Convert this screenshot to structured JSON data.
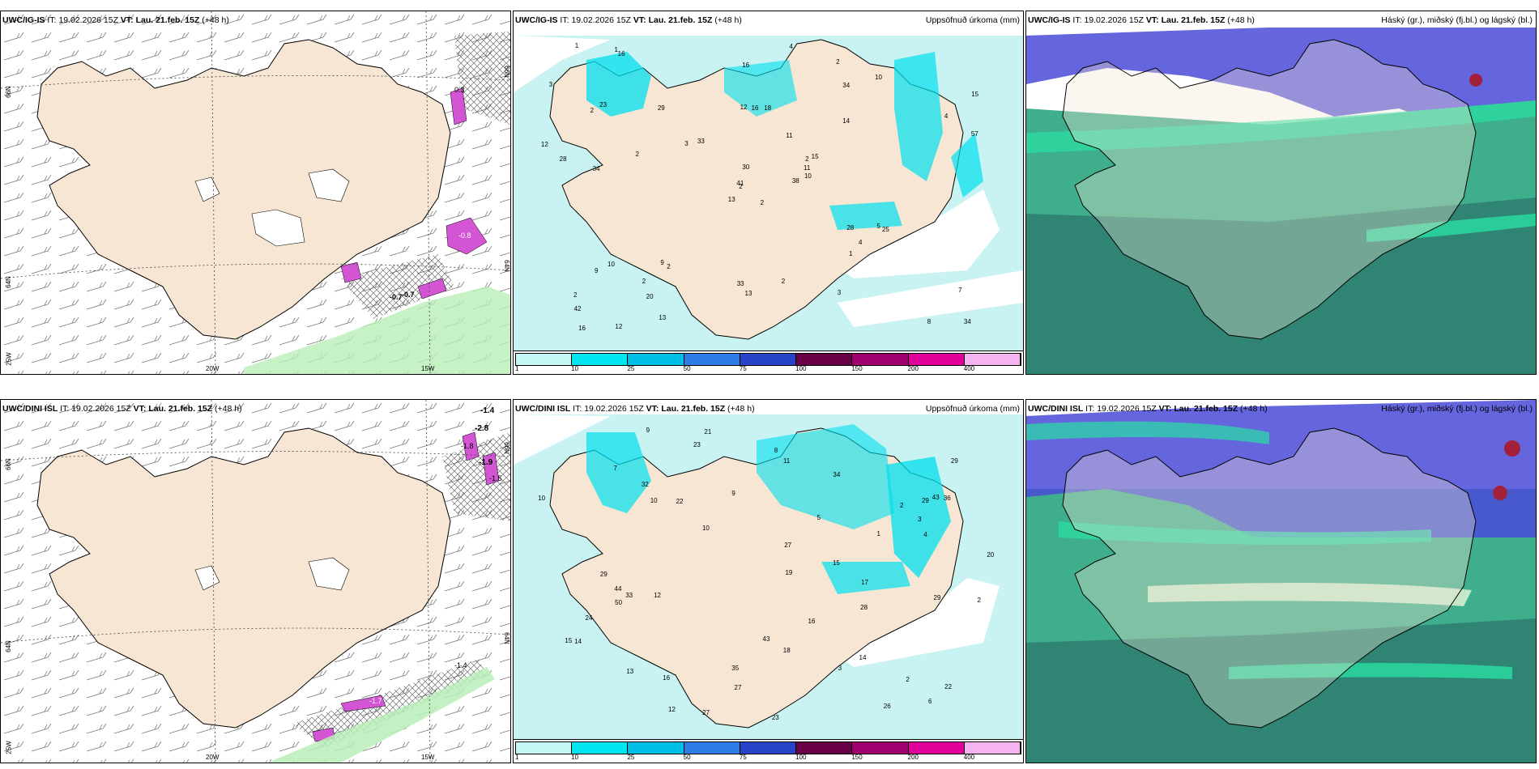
{
  "panels": [
    {
      "row": "top",
      "model": "UWC/IG-IS",
      "it_label": "IT:",
      "it": "19.02.2026 15Z",
      "vt_label": "VT:",
      "vt": "Lau. 21.feb. 15Z",
      "lead": "(+48 h)",
      "right_title": ""
    },
    {
      "row": "top",
      "model": "UWC/IG-IS",
      "it_label": "IT:",
      "it": "19.02.2026 15Z",
      "vt_label": "VT:",
      "vt": "Lau. 21.feb. 15Z",
      "lead": "(+48 h)",
      "right_title": "Uppsöfnuð úrkoma (mm)"
    },
    {
      "row": "top",
      "model": "UWC/IG-IS",
      "it_label": "IT:",
      "it": "19.02.2026 15Z",
      "vt_label": "VT:",
      "vt": "Lau. 21.feb. 15Z",
      "lead": "(+48 h)",
      "right_title": "Háský (gr.), miðský (fj.bl.) og lágský (bl.)"
    },
    {
      "row": "bottom",
      "model": "UWC/DINI ISL",
      "it_label": "IT:",
      "it": "19.02.2026 15Z",
      "vt_label": "VT:",
      "vt": "Lau. 21.feb. 15Z",
      "lead": "(+48 h)",
      "right_title": ""
    },
    {
      "row": "bottom",
      "model": "UWC/DINI ISL",
      "it_label": "IT:",
      "it": "19.02.2026 15Z",
      "vt_label": "VT:",
      "vt": "Lau. 21.feb. 15Z",
      "lead": "(+48 h)",
      "right_title": "Uppsöfnuð úrkoma (mm)"
    },
    {
      "row": "bottom",
      "model": "UWC/DINI ISL",
      "it_label": "IT:",
      "it": "19.02.2026 15Z",
      "vt_label": "VT:",
      "vt": "Lau. 21.feb. 15Z",
      "lead": "(+48 h)",
      "right_title": "Háský (gr.), miðský (fj.bl.) og lágský (bl.)"
    }
  ],
  "precip_legend": {
    "ticks": [
      "1",
      "10",
      "25",
      "50",
      "75",
      "100",
      "150",
      "200",
      "400"
    ],
    "colors": [
      "#c6f7f7",
      "#00e5ef",
      "#00bfe6",
      "#2e7de6",
      "#2845c8",
      "#6a0045",
      "#a0006e",
      "#e0009a",
      "#f5b3ef"
    ]
  },
  "map_labels": {
    "lat_66": "66N",
    "lat_64": "64N",
    "lon_25": "25W",
    "lon_20": "20W",
    "lon_15": "15W",
    "lat_66_right": "66N",
    "lat_64_right": "64N"
  },
  "pressure_values_top": [
    "0.3",
    "-0.8",
    "-0.7",
    "-0.7"
  ],
  "pressure_values_bottom": [
    "-1.4",
    "-2.8",
    "-1.8",
    "-1.9",
    "-1.5",
    "-1.7",
    "-1.4"
  ],
  "precip_numbers_top": [
    "2",
    "2",
    "2",
    "2",
    "2",
    "2",
    "2",
    "18",
    "34",
    "38",
    "16",
    "34",
    "34",
    "15",
    "13",
    "14",
    "12",
    "12",
    "11",
    "10",
    "33",
    "42",
    "20",
    "16",
    "15",
    "25",
    "23",
    "16",
    "28",
    "28",
    "57",
    "41",
    "33",
    "30",
    "29",
    "10",
    "9",
    "8",
    "7",
    "5",
    "4",
    "3",
    "2",
    "1",
    "13",
    "12",
    "11",
    "16",
    "13",
    "10",
    "9",
    "4",
    "3",
    "4",
    "3",
    "2",
    "1",
    "1",
    "2"
  ],
  "precip_numbers_bottom": [
    "2",
    "3",
    "2",
    "9",
    "32",
    "12",
    "27",
    "22",
    "20",
    "15",
    "10",
    "9",
    "14",
    "29",
    "21",
    "44",
    "29",
    "14",
    "10",
    "12",
    "16",
    "34",
    "27",
    "27",
    "28",
    "17",
    "23",
    "26",
    "35",
    "43",
    "29",
    "29",
    "16",
    "50",
    "43",
    "36",
    "33",
    "23",
    "15",
    "18",
    "22",
    "24",
    "19",
    "13",
    "10",
    "11",
    "8",
    "7",
    "6",
    "5",
    "4",
    "3",
    "2",
    "1"
  ],
  "colors": {
    "land": "#f6e6d3",
    "sea_precip": "#c9f3f3",
    "ice": "#ffffff",
    "cloud_high": "#3b3bd4",
    "cloud_mid": "#3fae8c",
    "cloud_low": "#2e8a7a"
  }
}
